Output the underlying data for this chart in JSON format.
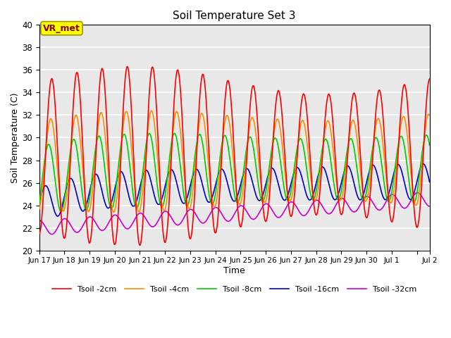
{
  "title": "Soil Temperature Set 3",
  "xlabel": "Time",
  "ylabel": "Soil Temperature (C)",
  "ylim": [
    20,
    40
  ],
  "background_color": "#e8e8e8",
  "grid_color": "white",
  "annotation_text": "VR_met",
  "annotation_box_color": "#ffff00",
  "annotation_text_color": "#8b0000",
  "series": {
    "Tsoil -2cm": {
      "color": "#ff0000",
      "linewidth": 1.2
    },
    "Tsoil -4cm": {
      "color": "#ff8c00",
      "linewidth": 1.2
    },
    "Tsoil -8cm": {
      "color": "#00cc00",
      "linewidth": 1.2
    },
    "Tsoil -16cm": {
      "color": "#0000cc",
      "linewidth": 1.2
    },
    "Tsoil -32cm": {
      "color": "#cc00cc",
      "linewidth": 1.2
    }
  }
}
